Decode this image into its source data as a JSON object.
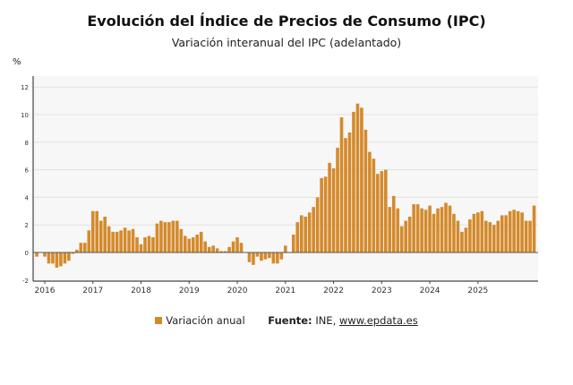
{
  "title": "Evolución del Índice de Precios de Consumo (IPC)",
  "subtitle": "Variación interanual del IPC (adelantado)",
  "legend": {
    "series_label": "Variación anual",
    "source_label": "Fuente:",
    "source_text": "INE, ",
    "source_link": "www.epdata.es"
  },
  "colors": {
    "bar": "#d48a2c",
    "plot_bg": "#f7f7f7",
    "grid": "#e2e2e2",
    "axis": "#444444"
  },
  "chart_data": {
    "type": "bar",
    "title": "Evolución del Índice de Precios de Consumo (IPC)",
    "subtitle": "Variación interanual del IPC (adelantado)",
    "ylabel": "%",
    "ylim": [
      -2,
      13
    ],
    "yticks": [
      -2,
      0,
      2,
      4,
      6,
      8,
      10,
      12
    ],
    "xticks": [
      "2016",
      "2017",
      "2018",
      "2019",
      "2020",
      "2021",
      "2022",
      "2023",
      "2024",
      "2025"
    ],
    "grid": true,
    "legend": "bottom",
    "start_month": "2015-11",
    "series": [
      {
        "name": "Variación anual",
        "values": [
          -0.3,
          0.0,
          -0.3,
          -0.8,
          -0.8,
          -1.1,
          -1.0,
          -0.8,
          -0.6,
          -0.1,
          0.2,
          0.7,
          0.7,
          1.6,
          3.0,
          3.0,
          2.3,
          2.6,
          1.9,
          1.5,
          1.5,
          1.6,
          1.8,
          1.6,
          1.7,
          1.1,
          0.6,
          1.1,
          1.2,
          1.1,
          2.1,
          2.3,
          2.2,
          2.2,
          2.3,
          2.3,
          1.7,
          1.2,
          1.0,
          1.1,
          1.3,
          1.5,
          0.8,
          0.4,
          0.5,
          0.3,
          0.1,
          0.1,
          0.4,
          0.8,
          1.1,
          0.7,
          0.0,
          -0.7,
          -0.9,
          -0.3,
          -0.6,
          -0.5,
          -0.4,
          -0.8,
          -0.8,
          -0.5,
          0.5,
          0.0,
          1.3,
          2.2,
          2.7,
          2.6,
          2.9,
          3.3,
          4.0,
          5.4,
          5.5,
          6.5,
          6.1,
          7.6,
          9.8,
          8.3,
          8.7,
          10.2,
          10.8,
          10.5,
          8.9,
          7.3,
          6.8,
          5.7,
          5.9,
          6.0,
          3.3,
          4.1,
          3.2,
          1.9,
          2.3,
          2.6,
          3.5,
          3.5,
          3.2,
          3.1,
          3.4,
          2.8,
          3.2,
          3.3,
          3.6,
          3.4,
          2.8,
          2.3,
          1.5,
          1.8,
          2.4,
          2.8,
          2.9,
          3.0,
          2.3,
          2.2,
          2.0,
          2.3,
          2.7,
          2.7,
          3.0,
          3.1,
          3.0,
          2.9,
          2.3,
          2.3,
          3.4
        ]
      }
    ]
  }
}
